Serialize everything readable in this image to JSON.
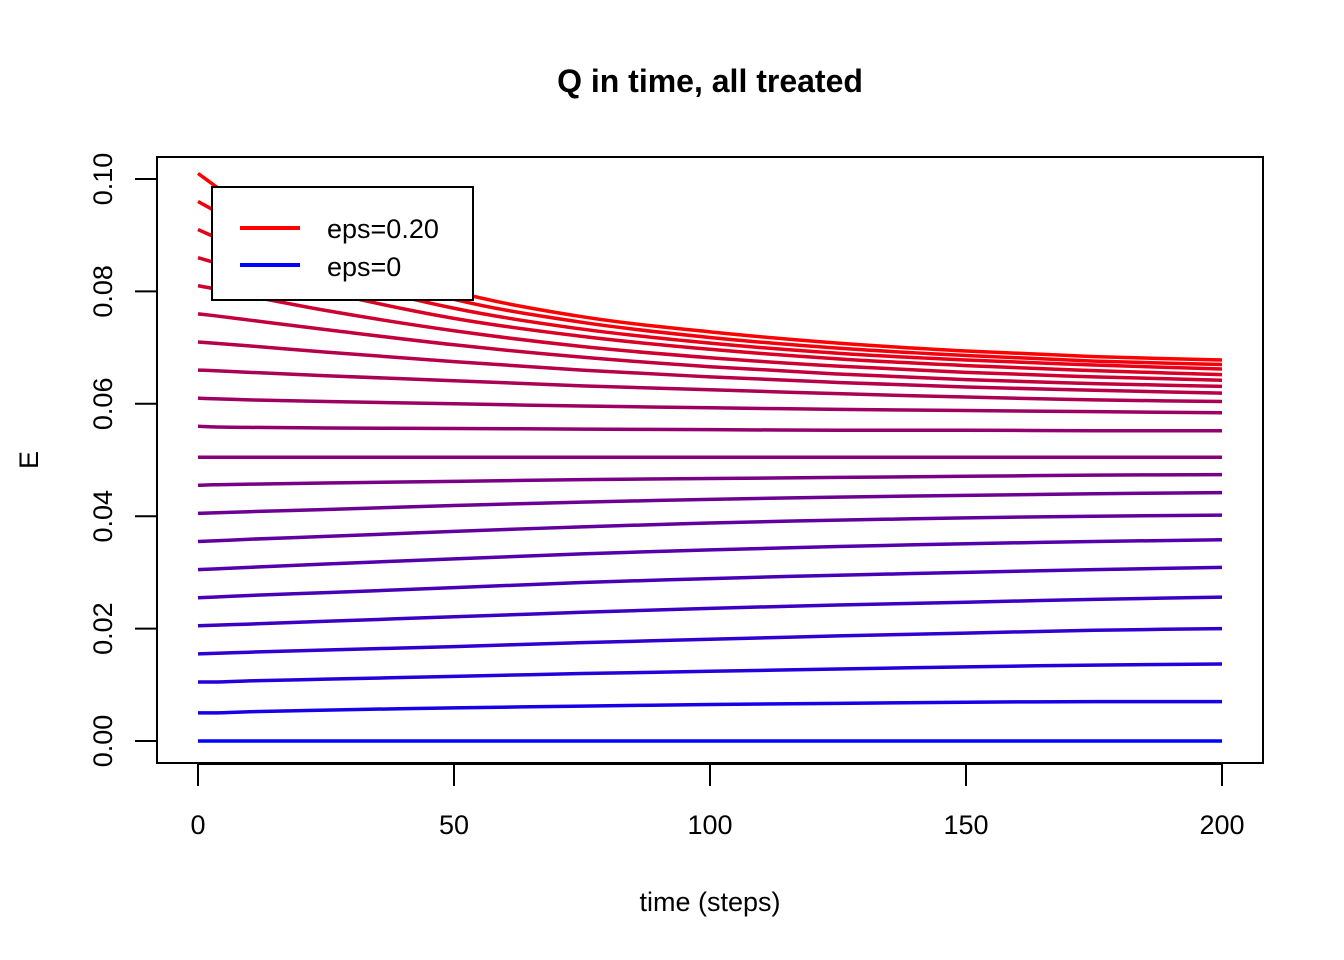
{
  "chart_data": {
    "type": "line",
    "title": "Q in time, all treated",
    "xlabel": "time (steps)",
    "ylabel": "E",
    "xlim": [
      0,
      200
    ],
    "ylim": [
      0,
      0.1
    ],
    "x_ticks": [
      "0",
      "50",
      "100",
      "150",
      "200"
    ],
    "y_ticks": [
      "0.00",
      "0.02",
      "0.04",
      "0.06",
      "0.08",
      "0.10"
    ],
    "grid": false,
    "legend_position": "top-left",
    "legend": [
      {
        "label": "eps=0.20",
        "color": "#ff0000"
      },
      {
        "label": "eps=0",
        "color": "#0000ff"
      }
    ],
    "x_sample": [
      0,
      3,
      10,
      25,
      50,
      75,
      100,
      125,
      150,
      175,
      200
    ],
    "series": [
      {
        "color": "#ff0000",
        "values": [
          0.101,
          0.099,
          0.0945,
          0.0875,
          0.08,
          0.0755,
          0.0728,
          0.0708,
          0.0694,
          0.0684,
          0.0678
        ]
      },
      {
        "color": "#f3000c",
        "values": [
          0.096,
          0.0945,
          0.0913,
          0.0855,
          0.0786,
          0.0745,
          0.0718,
          0.0699,
          0.0686,
          0.0676,
          0.067
        ]
      },
      {
        "color": "#e70018",
        "values": [
          0.091,
          0.0898,
          0.0872,
          0.0827,
          0.077,
          0.0733,
          0.0708,
          0.069,
          0.0678,
          0.0669,
          0.0662
        ]
      },
      {
        "color": "#da0025",
        "values": [
          0.086,
          0.0852,
          0.0834,
          0.0799,
          0.0752,
          0.072,
          0.0697,
          0.068,
          0.0668,
          0.0659,
          0.0652
        ]
      },
      {
        "color": "#ce0031",
        "values": [
          0.081,
          0.0805,
          0.0792,
          0.0766,
          0.073,
          0.0702,
          0.0682,
          0.0667,
          0.0656,
          0.0648,
          0.0642
        ]
      },
      {
        "color": "#c2003d",
        "values": [
          0.076,
          0.0757,
          0.0749,
          0.0732,
          0.0705,
          0.0683,
          0.0666,
          0.0653,
          0.0643,
          0.0636,
          0.0631
        ]
      },
      {
        "color": "#b60049",
        "values": [
          0.071,
          0.0708,
          0.0703,
          0.0692,
          0.0675,
          0.066,
          0.0648,
          0.0638,
          0.063,
          0.0624,
          0.0619
        ]
      },
      {
        "color": "#aa0055",
        "values": [
          0.066,
          0.0659,
          0.0656,
          0.065,
          0.0641,
          0.0632,
          0.0625,
          0.0618,
          0.0612,
          0.0607,
          0.0604
        ]
      },
      {
        "color": "#9d0062",
        "values": [
          0.061,
          0.0609,
          0.0607,
          0.0604,
          0.06,
          0.0596,
          0.0593,
          0.059,
          0.0588,
          0.0586,
          0.0584
        ]
      },
      {
        "color": "#91006e",
        "values": [
          0.056,
          0.0559,
          0.0558,
          0.0557,
          0.0556,
          0.0555,
          0.0554,
          0.0553,
          0.0553,
          0.0552,
          0.0552
        ]
      },
      {
        "color": "#85007a",
        "values": [
          0.0505,
          0.0505,
          0.0505,
          0.0505,
          0.0505,
          0.0505,
          0.0505,
          0.0505,
          0.0505,
          0.0505,
          0.0505
        ]
      },
      {
        "color": "#790086",
        "values": [
          0.0455,
          0.0456,
          0.0457,
          0.0459,
          0.0462,
          0.0465,
          0.0467,
          0.0469,
          0.0471,
          0.0473,
          0.0474
        ]
      },
      {
        "color": "#6d0092",
        "values": [
          0.0405,
          0.0406,
          0.0408,
          0.0412,
          0.0419,
          0.0425,
          0.043,
          0.0434,
          0.0437,
          0.044,
          0.0442
        ]
      },
      {
        "color": "#61009e",
        "values": [
          0.0355,
          0.0356,
          0.0359,
          0.0364,
          0.0373,
          0.0381,
          0.0388,
          0.0393,
          0.0397,
          0.04,
          0.0402
        ]
      },
      {
        "color": "#5400ab",
        "values": [
          0.0305,
          0.0306,
          0.0309,
          0.0315,
          0.0324,
          0.0333,
          0.034,
          0.0346,
          0.0351,
          0.0355,
          0.0358
        ]
      },
      {
        "color": "#4800b7",
        "values": [
          0.0255,
          0.0256,
          0.0259,
          0.0264,
          0.0273,
          0.0282,
          0.0289,
          0.0295,
          0.03,
          0.0305,
          0.0309
        ]
      },
      {
        "color": "#3c00c3",
        "values": [
          0.0205,
          0.0206,
          0.0208,
          0.0213,
          0.0221,
          0.0229,
          0.0236,
          0.0242,
          0.0247,
          0.0252,
          0.0256
        ]
      },
      {
        "color": "#3000cf",
        "values": [
          0.0155,
          0.0156,
          0.0158,
          0.0162,
          0.0168,
          0.0175,
          0.0181,
          0.0187,
          0.0192,
          0.0197,
          0.02
        ]
      },
      {
        "color": "#2400db",
        "values": [
          0.0105,
          0.0105,
          0.0107,
          0.011,
          0.0115,
          0.012,
          0.0124,
          0.0128,
          0.0132,
          0.0135,
          0.0137
        ]
      },
      {
        "color": "#1700e8",
        "values": [
          0.005,
          0.005,
          0.0052,
          0.0055,
          0.0059,
          0.0062,
          0.0065,
          0.0067,
          0.0069,
          0.007,
          0.007
        ]
      },
      {
        "color": "#0000ff",
        "values": [
          0.0,
          0.0,
          0.0,
          0.0,
          0.0,
          0.0,
          0.0,
          0.0,
          0.0,
          0.0,
          0.0
        ]
      }
    ]
  }
}
